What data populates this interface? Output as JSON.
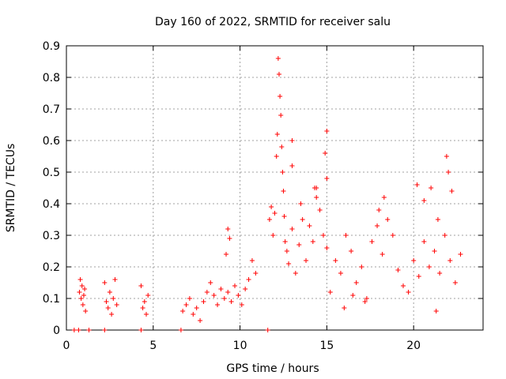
{
  "chart_data": {
    "type": "scatter",
    "title": "Day 160 of 2022, SRMTID for receiver salu",
    "xlabel": "GPS time / hours",
    "ylabel": "SRMTID / TECUs",
    "xlim": [
      0,
      24
    ],
    "ylim": [
      0,
      0.9
    ],
    "xticks": [
      0,
      5,
      10,
      15,
      20
    ],
    "yticks": [
      0,
      0.1,
      0.2,
      0.3,
      0.4,
      0.5,
      0.6,
      0.7,
      0.8,
      0.9
    ],
    "xtick_labels": [
      "0",
      "5",
      "10",
      "15",
      "20"
    ],
    "ytick_labels": [
      "0",
      "0.1",
      "0.2",
      "0.3",
      "0.4",
      "0.5",
      "0.6",
      "0.7",
      "0.8",
      "0.9"
    ],
    "grid": true,
    "marker": "+",
    "color": "#ff0000",
    "series": [
      {
        "name": "SRMTID",
        "x": [
          0.45,
          0.7,
          1.3,
          2.2,
          4.3,
          6.6,
          11.6,
          0.75,
          0.8,
          0.85,
          0.9,
          0.95,
          1.0,
          1.05,
          1.1,
          2.2,
          2.3,
          2.4,
          2.5,
          2.6,
          2.7,
          2.8,
          2.9,
          4.3,
          4.4,
          4.5,
          4.6,
          4.7,
          6.7,
          6.9,
          7.1,
          7.3,
          7.5,
          7.7,
          7.9,
          8.1,
          8.3,
          8.5,
          8.7,
          8.9,
          9.1,
          9.3,
          9.5,
          9.7,
          9.9,
          10.1,
          10.3,
          10.5,
          10.7,
          10.9,
          9.3,
          9.4,
          9.2,
          11.7,
          11.8,
          11.9,
          12.0,
          12.1,
          12.15,
          12.2,
          12.25,
          12.3,
          12.35,
          12.4,
          12.45,
          12.5,
          12.55,
          12.6,
          12.7,
          12.8,
          13.0,
          13.2,
          13.4,
          13.6,
          13.8,
          14.0,
          14.2,
          14.4,
          14.6,
          14.8,
          15.0,
          13.0,
          13.0,
          13.5,
          14.3,
          14.4,
          14.9,
          15.0,
          15.0,
          15.2,
          15.5,
          15.8,
          16.1,
          16.4,
          16.7,
          17.0,
          17.3,
          17.6,
          17.9,
          18.2,
          18.5,
          18.8,
          19.1,
          19.4,
          19.7,
          20.0,
          20.3,
          20.6,
          20.9,
          21.2,
          21.5,
          21.8,
          22.1,
          22.4,
          22.7,
          16.0,
          16.5,
          17.2,
          18.0,
          18.3,
          20.2,
          20.6,
          21.0,
          21.4,
          21.9,
          22.0,
          22.2,
          21.3
        ],
        "y": [
          0,
          0,
          0,
          0,
          0,
          0,
          0,
          0.12,
          0.16,
          0.1,
          0.14,
          0.08,
          0.11,
          0.13,
          0.06,
          0.15,
          0.09,
          0.07,
          0.12,
          0.05,
          0.1,
          0.16,
          0.08,
          0.14,
          0.07,
          0.09,
          0.05,
          0.11,
          0.06,
          0.08,
          0.1,
          0.05,
          0.07,
          0.03,
          0.09,
          0.12,
          0.15,
          0.11,
          0.08,
          0.13,
          0.1,
          0.12,
          0.09,
          0.14,
          0.11,
          0.08,
          0.13,
          0.16,
          0.22,
          0.18,
          0.32,
          0.29,
          0.24,
          0.35,
          0.39,
          0.3,
          0.37,
          0.55,
          0.62,
          0.86,
          0.81,
          0.74,
          0.68,
          0.58,
          0.5,
          0.44,
          0.36,
          0.28,
          0.25,
          0.21,
          0.32,
          0.18,
          0.27,
          0.35,
          0.22,
          0.33,
          0.28,
          0.45,
          0.38,
          0.3,
          0.26,
          0.6,
          0.52,
          0.4,
          0.45,
          0.42,
          0.56,
          0.63,
          0.48,
          0.12,
          0.22,
          0.18,
          0.3,
          0.25,
          0.15,
          0.2,
          0.1,
          0.28,
          0.33,
          0.24,
          0.35,
          0.3,
          0.19,
          0.14,
          0.12,
          0.22,
          0.17,
          0.28,
          0.2,
          0.25,
          0.18,
          0.3,
          0.22,
          0.15,
          0.24,
          0.07,
          0.11,
          0.09,
          0.38,
          0.42,
          0.46,
          0.41,
          0.45,
          0.35,
          0.55,
          0.5,
          0.44,
          0.06
        ]
      }
    ]
  }
}
